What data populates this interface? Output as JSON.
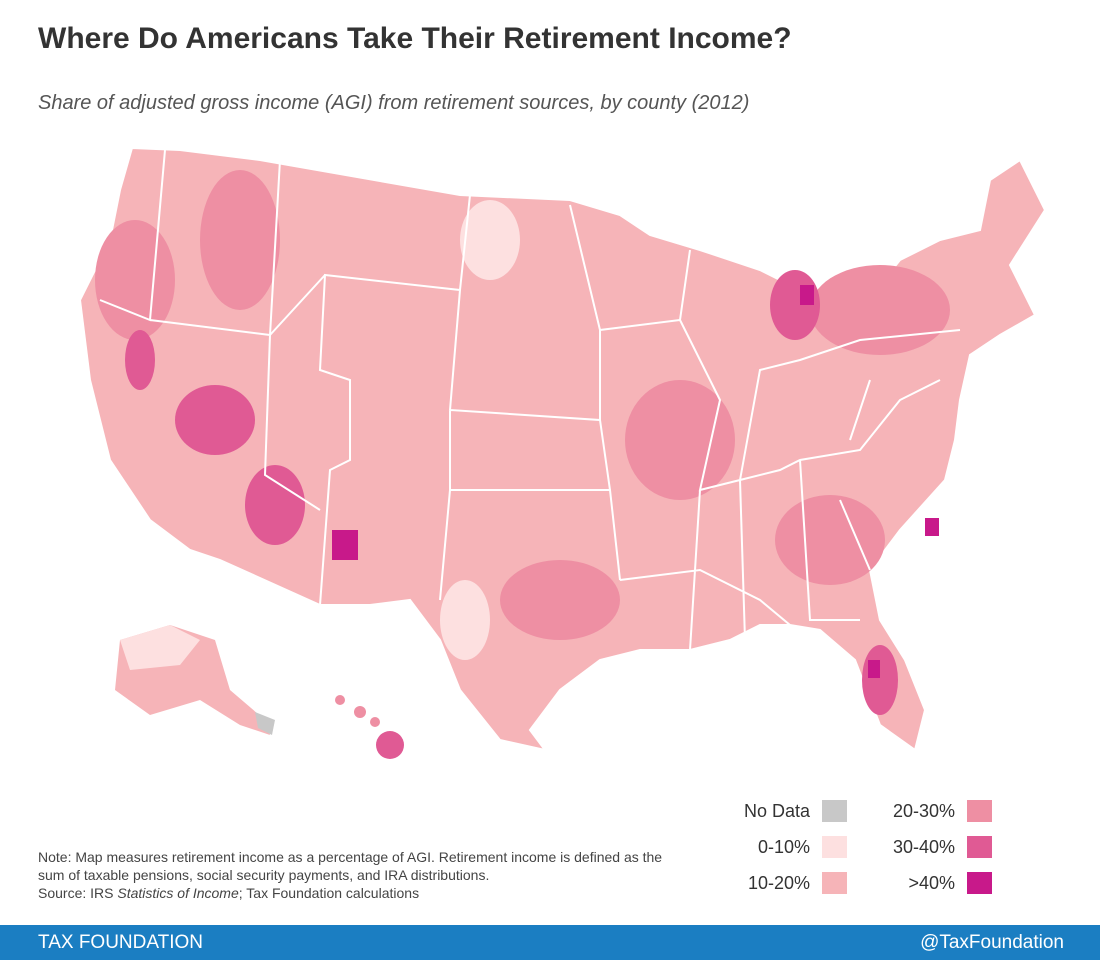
{
  "header": {
    "title": "Where Do Americans Take Their Retirement Income?",
    "subtitle": "Share of adjusted gross income (AGI) from retirement sources, by county (2012)"
  },
  "legend": [
    {
      "label": "No Data",
      "color": "#c8c8c8"
    },
    {
      "label": "0-10%",
      "color": "#fde0e0"
    },
    {
      "label": "10-20%",
      "color": "#f6b4b8"
    },
    {
      "label": "20-30%",
      "color": "#ee8fa3"
    },
    {
      "label": "30-40%",
      "color": "#e05a94"
    },
    {
      "label": ">40%",
      "color": "#c8198a"
    }
  ],
  "note": {
    "text": "Note: Map measures retirement income as a percentage of AGI. Retirement income is defined as the sum of taxable pensions, social security payments, and IRA distributions.",
    "source_prefix": "Source: IRS ",
    "source_italic": "Statistics of Income",
    "source_suffix": "; Tax Foundation calculations"
  },
  "footer": {
    "left": "TAX FOUNDATION",
    "right": "@TaxFoundation"
  }
}
